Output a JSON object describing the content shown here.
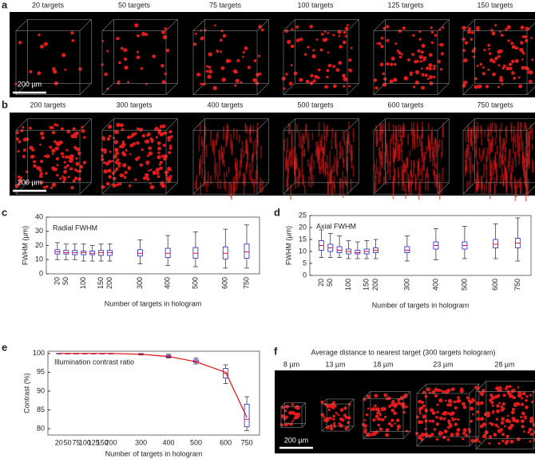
{
  "panel_a": {
    "letter": "a",
    "labels": [
      "20 targets",
      "50 targets",
      "75 targets",
      "100 targets",
      "125 targets",
      "150 targets"
    ],
    "scalebar": "200 µm"
  },
  "panel_b": {
    "letter": "b",
    "labels": [
      "200 targets",
      "300 targets",
      "400 targets",
      "500 targets",
      "600 targets",
      "750 targets"
    ],
    "scalebar": "200 µm"
  },
  "panel_f": {
    "letter": "f",
    "title": "Average distance to nearest target (300 targets hologram)",
    "labels": [
      "8 µm",
      "13 µm",
      "18 µm",
      "23 µm",
      "28 µm"
    ],
    "scalebar": "200 µm"
  },
  "chart_data": [
    {
      "type": "box",
      "panel_label": "c",
      "title": "Radial FWHM",
      "y_label": "FWHM (µm)",
      "x_label": "Number of targets in hologram",
      "categories": [
        20,
        50,
        null,
        100,
        null,
        150,
        200,
        300,
        400,
        500,
        600,
        750
      ],
      "min": [
        10,
        10,
        10,
        9,
        9,
        9,
        9,
        7,
        6,
        5,
        4,
        4
      ],
      "q1": [
        14,
        14,
        13.5,
        13.5,
        13.5,
        13,
        13,
        12.5,
        11.5,
        11,
        10.5,
        11
      ],
      "median": [
        15.5,
        15,
        15,
        15,
        14.5,
        15,
        15,
        14.5,
        14.5,
        14.5,
        14.5,
        15.5
      ],
      "q3": [
        17,
        16.5,
        16.5,
        16,
        16,
        16.5,
        16.5,
        17,
        18,
        18.5,
        19,
        21
      ],
      "max": [
        22,
        21,
        21,
        21,
        20,
        21,
        21,
        24,
        27,
        29.5,
        31.5,
        34.5
      ],
      "box_color": "#3a3acc",
      "median_color": "#e0104a",
      "ylim": [
        0,
        40
      ],
      "yticks": [
        0,
        10,
        20,
        30,
        40
      ]
    },
    {
      "type": "box",
      "panel_label": "d",
      "title": "Axial FWHM",
      "y_label": "FWHM (µm)",
      "x_label": "Number of targets in hologram",
      "categories": [
        20,
        50,
        null,
        100,
        null,
        150,
        200,
        300,
        400,
        500,
        600,
        750
      ],
      "min": [
        7.5,
        7.5,
        7.5,
        7,
        7,
        7,
        7,
        6,
        6.5,
        7,
        7,
        6
      ],
      "q1": [
        10.5,
        10,
        9.5,
        9,
        9,
        9,
        9.5,
        9.5,
        11,
        11,
        11.5,
        11.5
      ],
      "median": [
        12.5,
        11.5,
        10.5,
        10,
        9.5,
        10,
        10.5,
        10.5,
        12.5,
        12.5,
        13,
        13.5
      ],
      "q3": [
        14.5,
        13,
        12,
        11,
        10.5,
        11,
        11.5,
        12,
        14,
        14,
        15,
        15.5
      ],
      "max": [
        19,
        17.5,
        16.5,
        14.5,
        14,
        14.5,
        15,
        16.5,
        19.5,
        20.5,
        21.5,
        24
      ],
      "box_color": "#3a3acc",
      "median_color": "#e0104a",
      "ylim": [
        0,
        25
      ],
      "yticks": [
        0,
        5,
        10,
        15,
        20,
        25
      ]
    },
    {
      "type": "box",
      "panel_label": "e",
      "title": "Illumination contrast ratio",
      "y_label": "Contrast (%)",
      "x_label": "Number of targets in hologram",
      "categories": [
        20,
        50,
        75,
        100,
        125,
        150,
        200,
        300,
        400,
        500,
        600,
        750
      ],
      "min": [
        99.9,
        99.9,
        99.9,
        99.9,
        99.9,
        99.9,
        99.9,
        99.6,
        98.8,
        97.2,
        92,
        79.5
      ],
      "q1": [
        100,
        100,
        100,
        100,
        100,
        100,
        100,
        99.7,
        99,
        97.6,
        93.5,
        80.5
      ],
      "median": [
        100,
        100,
        100,
        100,
        100,
        100,
        100,
        99.8,
        99.3,
        98,
        94.7,
        82.5
      ],
      "q3": [
        100,
        100,
        100,
        100,
        100,
        100,
        100,
        99.9,
        99.5,
        98.3,
        96,
        86.5
      ],
      "max": [
        100,
        100,
        100,
        100,
        100,
        100,
        100,
        100,
        99.8,
        98.8,
        97,
        88.5
      ],
      "box_color": "#3a3acc",
      "median_color": "#e0104a",
      "fit": {
        "color": "#e01010",
        "values": [
          100,
          100,
          100,
          100,
          100,
          100,
          100,
          99.8,
          99.2,
          97.8,
          95,
          83
        ]
      },
      "ylim": [
        78.3,
        100.6
      ],
      "yticks": [
        80,
        85,
        90,
        95,
        100
      ]
    }
  ]
}
